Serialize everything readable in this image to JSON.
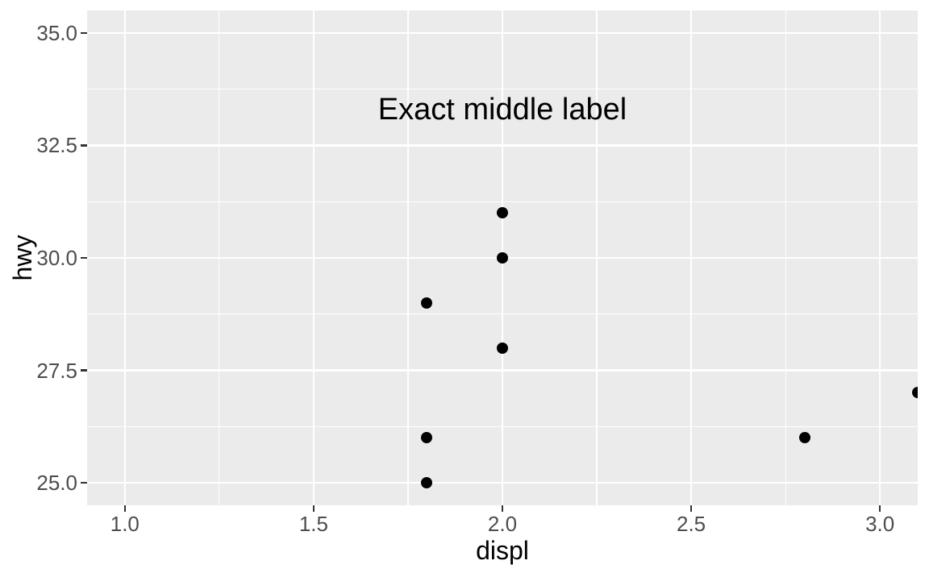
{
  "chart_data": {
    "type": "scatter",
    "title": "",
    "xlabel": "displ",
    "ylabel": "hwy",
    "xlim": [
      0.9,
      3.1
    ],
    "ylim": [
      24.5,
      35.5
    ],
    "x_ticks": [
      {
        "value": 1.0,
        "label": "1.0"
      },
      {
        "value": 1.5,
        "label": "1.5"
      },
      {
        "value": 2.0,
        "label": "2.0"
      },
      {
        "value": 2.5,
        "label": "2.5"
      },
      {
        "value": 3.0,
        "label": "3.0"
      }
    ],
    "y_ticks": [
      {
        "value": 25.0,
        "label": "25.0"
      },
      {
        "value": 27.5,
        "label": "27.5"
      },
      {
        "value": 30.0,
        "label": "30.0"
      },
      {
        "value": 32.5,
        "label": "32.5"
      },
      {
        "value": 35.0,
        "label": "35.0"
      }
    ],
    "x_minor_ticks": [
      1.25,
      1.75,
      2.25,
      2.75
    ],
    "y_minor_ticks": [
      26.25,
      28.75,
      31.25,
      33.75
    ],
    "points": [
      {
        "x": 1.8,
        "y": 29
      },
      {
        "x": 1.8,
        "y": 26
      },
      {
        "x": 1.8,
        "y": 25
      },
      {
        "x": 2.0,
        "y": 31
      },
      {
        "x": 2.0,
        "y": 30
      },
      {
        "x": 2.0,
        "y": 28
      },
      {
        "x": 2.8,
        "y": 26
      },
      {
        "x": 3.1,
        "y": 27
      }
    ],
    "annotation": {
      "text": "Exact middle label",
      "x": 2.0,
      "y": 33.3
    },
    "legend": null,
    "grid": "on",
    "colors": {
      "panel_background": "#EBEBEB",
      "gridline": "#FFFFFF",
      "point": "#000000",
      "tick_label": "#4D4D4D",
      "tick_mark": "#333333",
      "axis_title": "#000000",
      "annotation_text": "#000000",
      "plot_background": "#FFFFFF"
    }
  }
}
